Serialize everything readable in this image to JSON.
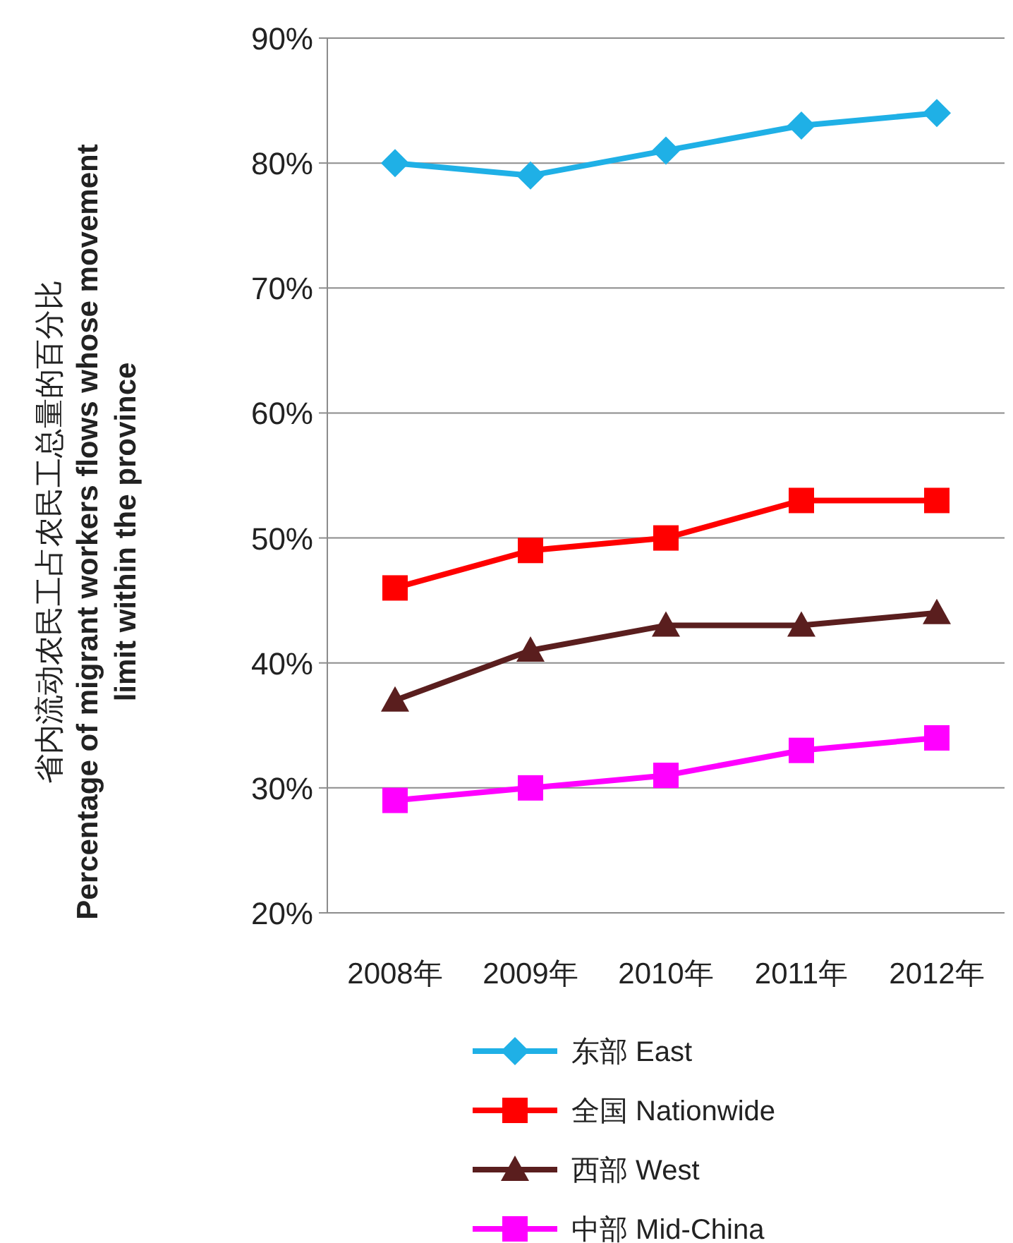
{
  "chart_data": {
    "type": "line",
    "ylabel": "省内流动农民工占农民工总量的百分比\nPercentage of migrant workers flows whose movement\nlimit within the province",
    "categories": [
      "2008年",
      "2009年",
      "2010年",
      "2011年",
      "2012年"
    ],
    "series": [
      {
        "name": "东部 East",
        "color": "#1fb0e6",
        "marker": "diamond",
        "values": [
          80,
          79,
          81,
          83,
          84
        ]
      },
      {
        "name": "全国 Nationwide",
        "color": "#ff0000",
        "marker": "square",
        "values": [
          46,
          49,
          50,
          53,
          53
        ]
      },
      {
        "name": "西部 West",
        "color": "#5a1e1e",
        "marker": "triangle",
        "values": [
          37,
          41,
          43,
          43,
          44
        ]
      },
      {
        "name": "中部 Mid-China",
        "color": "#ff00ff",
        "marker": "square",
        "values": [
          29,
          30,
          31,
          33,
          34
        ]
      }
    ],
    "ylim": [
      20,
      90
    ],
    "yticks": [
      {
        "value": 20,
        "label": "20%"
      },
      {
        "value": 30,
        "label": "30%"
      },
      {
        "value": 40,
        "label": "40%"
      },
      {
        "value": 50,
        "label": "50%"
      },
      {
        "value": 60,
        "label": "60%"
      },
      {
        "value": 70,
        "label": "70%"
      },
      {
        "value": 80,
        "label": "80%"
      },
      {
        "value": 90,
        "label": "90%"
      }
    ],
    "grid": "y",
    "legend": "bottom",
    "line_style": "solid"
  }
}
